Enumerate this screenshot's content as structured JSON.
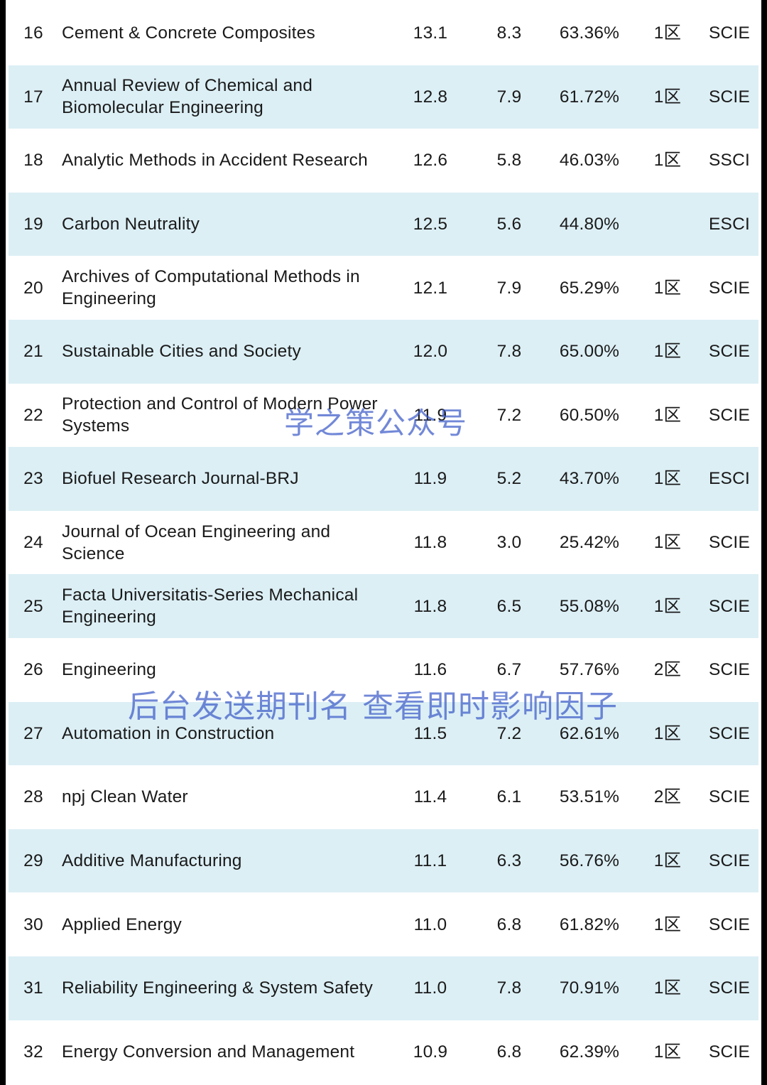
{
  "table": {
    "rows": [
      {
        "rank": "16",
        "name": "Cement & Concrete Composites",
        "impact_factor": "13.1",
        "five_year": "8.3",
        "percent": "63.36%",
        "zone": "1区",
        "index": "SCIE"
      },
      {
        "rank": "17",
        "name": "Annual Review of Chemical and Biomolecular Engineering",
        "impact_factor": "12.8",
        "five_year": "7.9",
        "percent": "61.72%",
        "zone": "1区",
        "index": "SCIE"
      },
      {
        "rank": "18",
        "name": "Analytic Methods in Accident Research",
        "impact_factor": "12.6",
        "five_year": "5.8",
        "percent": "46.03%",
        "zone": "1区",
        "index": "SSCI"
      },
      {
        "rank": "19",
        "name": "Carbon Neutrality",
        "impact_factor": "12.5",
        "five_year": "5.6",
        "percent": "44.80%",
        "zone": "",
        "index": "ESCI"
      },
      {
        "rank": "20",
        "name": "Archives of Computational Methods in Engineering",
        "impact_factor": "12.1",
        "five_year": "7.9",
        "percent": "65.29%",
        "zone": "1区",
        "index": "SCIE"
      },
      {
        "rank": "21",
        "name": "Sustainable Cities and Society",
        "impact_factor": "12.0",
        "five_year": "7.8",
        "percent": "65.00%",
        "zone": "1区",
        "index": "SCIE"
      },
      {
        "rank": "22",
        "name": "Protection and Control of Modern Power Systems",
        "impact_factor": "11.9",
        "five_year": "7.2",
        "percent": "60.50%",
        "zone": "1区",
        "index": "SCIE"
      },
      {
        "rank": "23",
        "name": "Biofuel Research Journal-BRJ",
        "impact_factor": "11.9",
        "five_year": "5.2",
        "percent": "43.70%",
        "zone": "1区",
        "index": "ESCI"
      },
      {
        "rank": "24",
        "name": "Journal of Ocean Engineering and Science",
        "impact_factor": "11.8",
        "five_year": "3.0",
        "percent": "25.42%",
        "zone": "1区",
        "index": "SCIE"
      },
      {
        "rank": "25",
        "name": "Facta Universitatis-Series Mechanical Engineering",
        "impact_factor": "11.8",
        "five_year": "6.5",
        "percent": "55.08%",
        "zone": "1区",
        "index": "SCIE"
      },
      {
        "rank": "26",
        "name": "Engineering",
        "impact_factor": "11.6",
        "five_year": "6.7",
        "percent": "57.76%",
        "zone": "2区",
        "index": "SCIE"
      },
      {
        "rank": "27",
        "name": "Automation in Construction",
        "impact_factor": "11.5",
        "five_year": "7.2",
        "percent": "62.61%",
        "zone": "1区",
        "index": "SCIE"
      },
      {
        "rank": "28",
        "name": "npj Clean Water",
        "impact_factor": "11.4",
        "five_year": "6.1",
        "percent": "53.51%",
        "zone": "2区",
        "index": "SCIE"
      },
      {
        "rank": "29",
        "name": "Additive Manufacturing",
        "impact_factor": "11.1",
        "five_year": "6.3",
        "percent": "56.76%",
        "zone": "1区",
        "index": "SCIE"
      },
      {
        "rank": "30",
        "name": "Applied Energy",
        "impact_factor": "11.0",
        "five_year": "6.8",
        "percent": "61.82%",
        "zone": "1区",
        "index": "SCIE"
      },
      {
        "rank": "31",
        "name": "Reliability Engineering & System Safety",
        "impact_factor": "11.0",
        "five_year": "7.8",
        "percent": "70.91%",
        "zone": "1区",
        "index": "SCIE"
      },
      {
        "rank": "32",
        "name": "Energy Conversion and Management",
        "impact_factor": "10.9",
        "five_year": "6.8",
        "percent": "62.39%",
        "zone": "1区",
        "index": "SCIE"
      }
    ]
  },
  "watermarks": {
    "account": "学之策公众号",
    "notice": "后台发送期刊名 查看即时影响因子"
  },
  "colors": {
    "row_shade": "#dceff5",
    "watermark": "#3c5ac8"
  }
}
